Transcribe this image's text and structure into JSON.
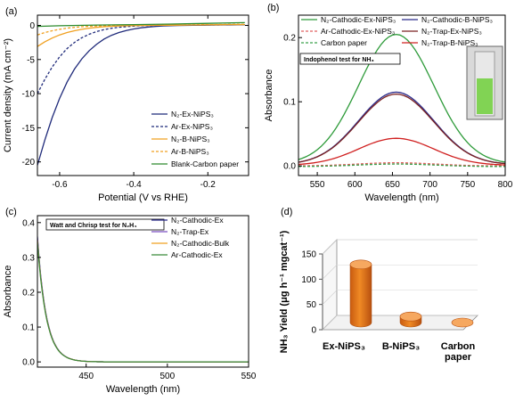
{
  "chart_data": [
    {
      "panel": "(a)",
      "type": "line",
      "xlabel": "Potential (V vs RHE)",
      "ylabel": "Current density (mA cm⁻²)",
      "xlim": [
        -0.66,
        -0.09
      ],
      "ylim": [
        -22,
        1.5
      ],
      "xticks": [
        -0.6,
        -0.4,
        -0.2
      ],
      "xtick_labels": [
        "-0.6",
        "-0.4",
        "-0.2"
      ],
      "yticks": [
        0,
        -5,
        -10,
        -15,
        -20
      ],
      "ytick_labels": [
        "0",
        "-5",
        "-10",
        "-15",
        "-20"
      ],
      "legend_position": "bottom-right",
      "series": [
        {
          "name": "N₂-Ex-NiPS₃",
          "color": "#1f2a7a",
          "dash": "solid",
          "x": [
            -0.66,
            -0.64,
            -0.62,
            -0.6,
            -0.58,
            -0.56,
            -0.54,
            -0.52,
            -0.5,
            -0.48,
            -0.46,
            -0.44,
            -0.42,
            -0.4,
            -0.38,
            -0.36,
            -0.34,
            -0.32,
            -0.3,
            -0.28,
            -0.26,
            -0.24,
            -0.22,
            -0.2,
            -0.18,
            -0.16,
            -0.14,
            -0.12,
            -0.1
          ],
          "y": [
            -20.5,
            -16.8,
            -13.5,
            -10.7,
            -8.3,
            -6.4,
            -4.9,
            -3.7,
            -2.75,
            -2.0,
            -1.45,
            -1.05,
            -0.75,
            -0.52,
            -0.36,
            -0.24,
            -0.15,
            -0.08,
            -0.04,
            -0.01,
            0.0,
            0.02,
            0.03,
            0.04,
            0.05,
            0.06,
            0.07,
            0.08,
            0.09
          ]
        },
        {
          "name": "Ar-Ex-NiPS₃",
          "color": "#1f2a7a",
          "dash": "dashed",
          "x": [
            -0.66,
            -0.64,
            -0.62,
            -0.6,
            -0.58,
            -0.56,
            -0.54,
            -0.52,
            -0.5,
            -0.48,
            -0.46,
            -0.44,
            -0.42,
            -0.4,
            -0.38,
            -0.36,
            -0.34,
            -0.32,
            -0.3,
            -0.28,
            -0.26,
            -0.24,
            -0.22,
            -0.2,
            -0.18,
            -0.16,
            -0.14,
            -0.12,
            -0.1
          ],
          "y": [
            -10.0,
            -7.9,
            -6.1,
            -4.6,
            -3.4,
            -2.5,
            -1.8,
            -1.3,
            -0.9,
            -0.62,
            -0.42,
            -0.28,
            -0.18,
            -0.11,
            -0.06,
            -0.03,
            -0.01,
            0.0,
            0.01,
            0.02,
            0.03,
            0.04,
            0.05,
            0.06,
            0.07,
            0.08,
            0.09,
            0.1,
            0.1
          ]
        },
        {
          "name": "N₂-B-NiPS₃",
          "color": "#f0a020",
          "dash": "solid",
          "x": [
            -0.66,
            -0.64,
            -0.62,
            -0.6,
            -0.58,
            -0.56,
            -0.54,
            -0.52,
            -0.5,
            -0.48,
            -0.46,
            -0.44,
            -0.42,
            -0.4,
            -0.38,
            -0.36,
            -0.34,
            -0.32,
            -0.3,
            -0.28,
            -0.26,
            -0.24,
            -0.22,
            -0.2,
            -0.18,
            -0.16,
            -0.14,
            -0.12,
            -0.1
          ],
          "y": [
            -3.1,
            -2.4,
            -1.85,
            -1.4,
            -1.05,
            -0.78,
            -0.57,
            -0.41,
            -0.29,
            -0.2,
            -0.13,
            -0.08,
            -0.05,
            -0.03,
            -0.01,
            0.0,
            0.01,
            0.02,
            0.03,
            0.04,
            0.05,
            0.06,
            0.07,
            0.08,
            0.09,
            0.1,
            0.11,
            0.12,
            0.12
          ]
        },
        {
          "name": "Ar-B-NiPS₃",
          "color": "#f0a020",
          "dash": "dashed",
          "x": [
            -0.66,
            -0.64,
            -0.62,
            -0.6,
            -0.58,
            -0.56,
            -0.54,
            -0.52,
            -0.5,
            -0.48,
            -0.46,
            -0.44,
            -0.42,
            -0.4,
            -0.38,
            -0.36,
            -0.34,
            -0.32,
            -0.3,
            -0.28,
            -0.26,
            -0.24,
            -0.22,
            -0.2,
            -0.18,
            -0.16,
            -0.14,
            -0.12,
            -0.1
          ],
          "y": [
            -1.4,
            -1.05,
            -0.78,
            -0.57,
            -0.41,
            -0.29,
            -0.2,
            -0.13,
            -0.08,
            -0.05,
            -0.03,
            -0.01,
            0.0,
            0.01,
            0.02,
            0.03,
            0.04,
            0.05,
            0.06,
            0.07,
            0.08,
            0.09,
            0.1,
            0.11,
            0.12,
            0.13,
            0.14,
            0.15,
            0.15
          ]
        },
        {
          "name": "Blank-Carbon paper",
          "color": "#2e8b2e",
          "dash": "solid",
          "x": [
            -0.66,
            -0.6,
            -0.5,
            -0.4,
            -0.3,
            -0.2,
            -0.1
          ],
          "y": [
            -0.15,
            -0.05,
            0.05,
            0.12,
            0.2,
            0.3,
            0.4
          ]
        }
      ]
    },
    {
      "panel": "(b)",
      "type": "line",
      "xlabel": "Wavelength (nm)",
      "ylabel": "Absorbance",
      "xlim": [
        525,
        800
      ],
      "ylim": [
        -0.015,
        0.235
      ],
      "xticks": [
        550,
        600,
        650,
        700,
        750,
        800
      ],
      "xtick_labels": [
        "550",
        "600",
        "650",
        "700",
        "750",
        "800"
      ],
      "yticks": [
        0.0,
        0.1,
        0.2
      ],
      "ytick_labels": [
        "0.0",
        "0.1",
        "0.2"
      ],
      "annotation": "Indophenol test for NH₃",
      "legend_position": "top",
      "peaks": {
        "x0": 655,
        "sigma": 50
      },
      "series": [
        {
          "name": "N₂-Cathodic-Ex-NiPS₃",
          "color": "#2e9b3a",
          "dash": "solid",
          "peak": 0.205,
          "baseline": 0.003
        },
        {
          "name": "N₂-Cathodic-B-NiPS₃",
          "color": "#2a2a8a",
          "dash": "solid",
          "peak": 0.115,
          "baseline": 0.002
        },
        {
          "name": "Ar-Cathodic-Ex-NiPS₃",
          "color": "#e06060",
          "dash": "dashed",
          "peak": 0.005,
          "baseline": 0.0
        },
        {
          "name": "N₂-Trap-Ex-NiPS₃",
          "color": "#7a2020",
          "dash": "solid",
          "peak": 0.112,
          "baseline": 0.002
        },
        {
          "name": "Carbon paper",
          "color": "#3aa04a",
          "dash": "dashed",
          "peak": 0.003,
          "baseline": -0.001
        },
        {
          "name": "N₂-Trap-B-NiPS₃",
          "color": "#d02020",
          "dash": "solid",
          "peak": 0.043,
          "baseline": 0.001
        }
      ]
    },
    {
      "panel": "(c)",
      "type": "line",
      "xlabel": "Wavelength (nm)",
      "ylabel": "Absorbance",
      "xlim": [
        420,
        550
      ],
      "ylim": [
        -0.015,
        0.42
      ],
      "xticks": [
        450,
        500,
        550
      ],
      "xtick_labels": [
        "450",
        "500",
        "550"
      ],
      "yticks": [
        0.0,
        0.1,
        0.2,
        0.3,
        0.4
      ],
      "ytick_labels": [
        "0.0",
        "0.1",
        "0.2",
        "0.3",
        "0.4"
      ],
      "annotation": "Watt and Chrisp test for N₂H₄",
      "legend_position": "top-right",
      "series": [
        {
          "name": "N₂-Cathodic-Ex",
          "color": "#2a2a8a",
          "dash": "solid",
          "y0": 0.36
        },
        {
          "name": "N₂-Trap-Ex",
          "color": "#7b4fc0",
          "dash": "solid",
          "y0": 0.355
        },
        {
          "name": "N₂-Cathodic-Bulk",
          "color": "#f0a020",
          "dash": "solid",
          "y0": 0.35
        },
        {
          "name": "Ar-Cathodic-Ex",
          "color": "#3a8a3a",
          "dash": "solid",
          "y0": 0.345
        }
      ]
    },
    {
      "panel": "(d)",
      "type": "bar",
      "ylabel": "NH₃ Yield (μg h⁻¹ mgcat⁻¹)",
      "ylim": [
        0,
        150
      ],
      "yticks": [
        0,
        50,
        100,
        150
      ],
      "ytick_labels": [
        "0",
        "50",
        "100",
        "150"
      ],
      "categories": [
        "Ex-NiPS₃",
        "B-NiPS₃",
        "Carbon paper"
      ],
      "values": [
        115,
        12,
        0
      ],
      "bar_color": "#f08a24"
    }
  ]
}
